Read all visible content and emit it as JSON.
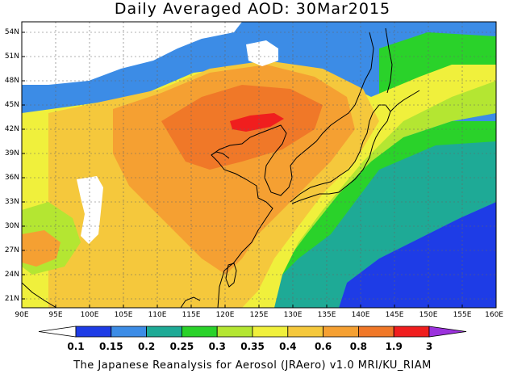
{
  "title": "Daily Averaged AOD: 30Mar2015",
  "credit": "The Japanese Reanalysis for Aerosol (JRAero) v1.0 MRI/KU_RIAM",
  "lat_labels": [
    {
      "deg": 54,
      "text": "54N"
    },
    {
      "deg": 51,
      "text": "51N"
    },
    {
      "deg": 48,
      "text": "48N"
    },
    {
      "deg": 45,
      "text": "45N"
    },
    {
      "deg": 42,
      "text": "42N"
    },
    {
      "deg": 39,
      "text": "39N"
    },
    {
      "deg": 36,
      "text": "36N"
    },
    {
      "deg": 33,
      "text": "33N"
    },
    {
      "deg": 30,
      "text": "30N"
    },
    {
      "deg": 27,
      "text": "27N"
    },
    {
      "deg": 24,
      "text": "24N"
    },
    {
      "deg": 21,
      "text": "21N"
    }
  ],
  "lon_labels": [
    {
      "deg": 90,
      "text": "90E"
    },
    {
      "deg": 95,
      "text": "95E"
    },
    {
      "deg": 100,
      "text": "100E"
    },
    {
      "deg": 105,
      "text": "105E"
    },
    {
      "deg": 110,
      "text": "110E"
    },
    {
      "deg": 115,
      "text": "115E"
    },
    {
      "deg": 120,
      "text": "120E"
    },
    {
      "deg": 125,
      "text": "125E"
    },
    {
      "deg": 130,
      "text": "130E"
    },
    {
      "deg": 135,
      "text": "135E"
    },
    {
      "deg": 140,
      "text": "140E"
    },
    {
      "deg": 145,
      "text": "145E"
    },
    {
      "deg": 150,
      "text": "150E"
    },
    {
      "deg": 155,
      "text": "155E"
    },
    {
      "deg": 160,
      "text": "160E"
    }
  ],
  "colorbar": {
    "colors": [
      "#ffffff",
      "#1e3ce6",
      "#3c8ce6",
      "#1eaa96",
      "#2ad22a",
      "#b4e632",
      "#f0f03c",
      "#f5c83c",
      "#f5a032",
      "#f07828",
      "#f01e1e",
      "#9b32dc"
    ],
    "labels": [
      "0.1",
      "0.15",
      "0.2",
      "0.25",
      "0.3",
      "0.35",
      "0.4",
      "0.6",
      "0.8",
      "1.9",
      "3"
    ]
  }
}
